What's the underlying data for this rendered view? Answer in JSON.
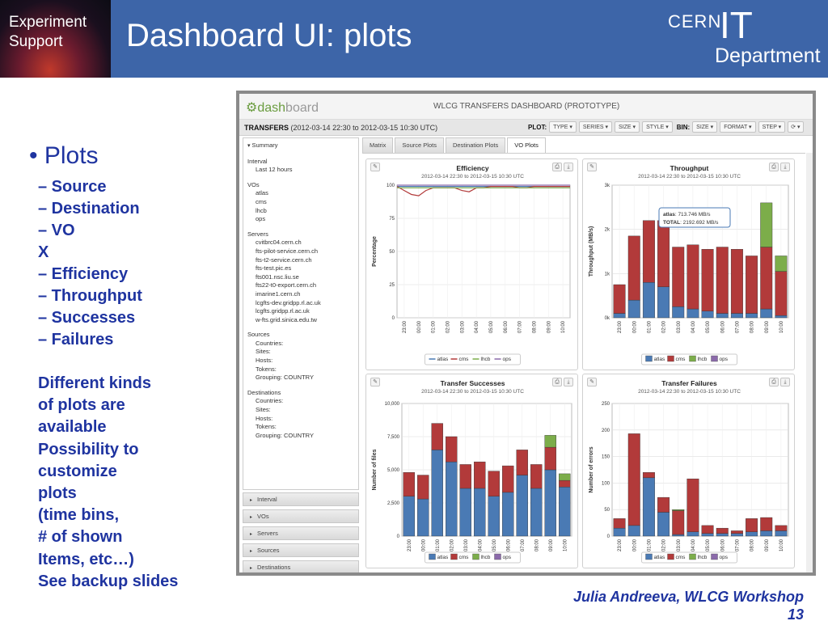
{
  "slide": {
    "badge_line1": "Experiment",
    "badge_line2": "Support",
    "title": "Dashboard UI: plots",
    "logo_cern": "CERN",
    "logo_it": "IT",
    "logo_dept": "Department",
    "bullet_main": "• Plots",
    "sub_items": [
      "– Source",
      "– Destination",
      "– VO",
      "X",
      "– Efficiency",
      "– Throughput",
      "– Successes",
      "– Failures"
    ],
    "notes": [
      "Different kinds",
      "of plots are",
      "available",
      "Possibility to",
      "customize",
      "plots",
      "(time bins,",
      "# of shown",
      "Items, etc…)",
      "See backup slides"
    ],
    "footer_line1": "Julia Andreeva, WLCG Workshop",
    "footer_line2": "13"
  },
  "app": {
    "brand_prefix": "dash",
    "brand_suffix": "board",
    "title": "WLCG TRANSFERS DASHBOARD (PROTOTYPE)",
    "toolbar": {
      "label": "TRANSFERS",
      "range": "(2012-03-14 22:30 to 2012-03-15 10:30 UTC)",
      "plot_label": "PLOT:",
      "bin_label": "BIN:",
      "plot_dropdowns": [
        "TYPE",
        "SERIES",
        "SIZE",
        "STYLE"
      ],
      "bin_dropdowns": [
        "SIZE",
        "FORMAT",
        "STEP"
      ]
    },
    "sidebar": {
      "summary": "Summary",
      "interval_h": "Interval",
      "interval_v": "Last 12 hours",
      "vos_h": "VOs",
      "vos": [
        "atlas",
        "cms",
        "lhcb",
        "ops"
      ],
      "servers_h": "Servers",
      "servers": [
        "cvitbrc04.cern.ch",
        "fts-pilot-service.cern.ch",
        "fts-t2-service.cern.ch",
        "fts-test.pic.es",
        "fts001.nsc.liu.se",
        "fts22-t0-export.cern.ch",
        "imarine1.cern.ch",
        "lcgfts-dev.gridpp.rl.ac.uk",
        "lcgfts.gridpp.rl.ac.uk",
        "w-fts.grid.sinica.edu.tw"
      ],
      "sources_h": "Sources",
      "destinations_h": "Destinations",
      "filters": [
        "Countries:",
        "Sites:",
        "Hosts:",
        "Tokens:",
        "Grouping: COUNTRY"
      ]
    },
    "accordion": [
      "Interval",
      "VOs",
      "Servers",
      "Sources",
      "Destinations"
    ],
    "tabs": [
      "Matrix",
      "Source Plots",
      "Destination Plots",
      "VO Plots"
    ],
    "active_tab": 3,
    "tooltip": {
      "atlas_label": "atlas",
      "atlas_value": ": 713.746 MB/s",
      "total_label": "TOTAL",
      "total_value": ": 2192.692 MB/s"
    },
    "series_colors": {
      "atlas": "#4a7ab4",
      "cms": "#b23a3a",
      "lhcb": "#7cad4a",
      "ops": "#8b6aaa"
    },
    "hours": [
      "23:00",
      "00:00",
      "01:00",
      "02:00",
      "03:00",
      "04:00",
      "05:00",
      "06:00",
      "07:00",
      "08:00",
      "09:00",
      "10:00"
    ],
    "subtitle": "2012-03-14 22:30 to 2012-03-15 10:30 UTC"
  },
  "chart_data": [
    {
      "type": "line",
      "title": "Efficiency",
      "xlabel": "",
      "ylabel": "Percentage",
      "ylim": [
        0,
        100
      ],
      "yticks": [
        "0",
        "25",
        "50",
        "75",
        "100"
      ],
      "legend": "bottom",
      "series": [
        {
          "name": "atlas",
          "values": [
            99,
            99,
            99,
            99,
            99,
            99,
            99,
            99,
            99,
            99,
            99,
            99,
            99,
            99,
            99,
            99,
            99,
            99,
            99,
            99,
            99,
            99,
            99,
            99,
            99
          ]
        },
        {
          "name": "cms",
          "values": [
            99,
            96,
            93,
            92,
            96,
            98,
            98,
            98,
            98,
            96,
            95,
            98,
            98,
            99,
            99,
            99,
            99,
            98,
            98,
            99,
            99,
            99,
            99,
            99,
            99
          ]
        },
        {
          "name": "lhcb",
          "values": [
            98,
            98,
            98,
            98,
            98,
            98,
            98,
            98,
            98,
            98,
            98,
            98,
            98,
            98,
            98,
            98,
            98,
            98,
            98,
            98,
            98,
            98,
            98,
            98,
            98
          ]
        },
        {
          "name": "ops",
          "values": [
            100,
            100,
            100,
            100,
            100,
            100,
            100,
            100,
            100,
            100,
            100,
            100,
            100,
            100,
            100,
            100,
            100,
            100,
            100,
            100,
            100,
            100,
            100,
            100,
            100
          ]
        }
      ]
    },
    {
      "type": "bar",
      "stacked": true,
      "title": "Throughput",
      "ylabel": "Throughput (MB/s)",
      "ylim": [
        0,
        3000
      ],
      "yticks": [
        "0k",
        "1k",
        "2k",
        "3k"
      ],
      "legend": "bottom",
      "series": [
        {
          "name": "atlas",
          "values": [
            100,
            400,
            800,
            700,
            250,
            200,
            150,
            100,
            100,
            100,
            200,
            50
          ]
        },
        {
          "name": "cms",
          "values": [
            650,
            1450,
            1400,
            1500,
            1350,
            1450,
            1400,
            1500,
            1450,
            1300,
            1400,
            1000
          ]
        },
        {
          "name": "lhcb",
          "values": [
            0,
            0,
            0,
            0,
            0,
            0,
            0,
            0,
            0,
            0,
            1000,
            350
          ]
        },
        {
          "name": "ops",
          "values": [
            0,
            0,
            0,
            0,
            0,
            0,
            0,
            0,
            0,
            0,
            0,
            0
          ]
        }
      ]
    },
    {
      "type": "bar",
      "stacked": true,
      "title": "Transfer Successes",
      "ylabel": "Number of files",
      "ylim": [
        0,
        10000
      ],
      "yticks": [
        "0",
        "2,500",
        "5,000",
        "7,500",
        "10,000"
      ],
      "legend": "bottom",
      "series": [
        {
          "name": "atlas",
          "values": [
            3000,
            2800,
            6500,
            5600,
            3600,
            3600,
            3000,
            3300,
            4600,
            3600,
            5000,
            3700
          ]
        },
        {
          "name": "cms",
          "values": [
            1800,
            1800,
            2000,
            1900,
            1800,
            2000,
            1900,
            2000,
            1900,
            1800,
            1700,
            500
          ]
        },
        {
          "name": "lhcb",
          "values": [
            0,
            0,
            0,
            0,
            0,
            0,
            0,
            0,
            0,
            0,
            900,
            500
          ]
        },
        {
          "name": "ops",
          "values": [
            0,
            0,
            0,
            0,
            0,
            0,
            0,
            0,
            0,
            0,
            0,
            0
          ]
        }
      ]
    },
    {
      "type": "bar",
      "stacked": true,
      "title": "Transfer Failures",
      "ylabel": "Number of errors",
      "ylim": [
        0,
        250
      ],
      "yticks": [
        "0",
        "50",
        "100",
        "150",
        "200",
        "250"
      ],
      "legend": "bottom",
      "series": [
        {
          "name": "atlas",
          "values": [
            15,
            20,
            110,
            45,
            3,
            8,
            5,
            5,
            5,
            8,
            10,
            10
          ]
        },
        {
          "name": "cms",
          "values": [
            18,
            173,
            10,
            28,
            45,
            100,
            15,
            10,
            5,
            25,
            25,
            10
          ]
        },
        {
          "name": "lhcb",
          "values": [
            0,
            0,
            0,
            0,
            2,
            0,
            0,
            0,
            0,
            0,
            0,
            0
          ]
        },
        {
          "name": "ops",
          "values": [
            0,
            0,
            0,
            0,
            0,
            0,
            0,
            0,
            0,
            0,
            0,
            0
          ]
        }
      ]
    }
  ]
}
